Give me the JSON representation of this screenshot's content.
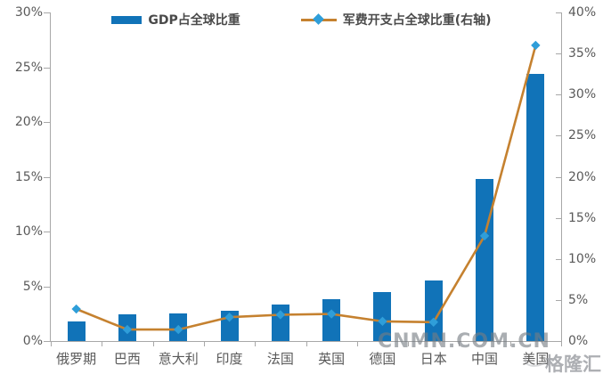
{
  "chart_data": {
    "type": "combo",
    "title": "",
    "categories": [
      "俄罗期",
      "巴西",
      "意大利",
      "印度",
      "法国",
      "英国",
      "德国",
      "日本",
      "中国",
      "美国"
    ],
    "series": [
      {
        "name": "GDP占全球比重",
        "type": "bar",
        "axis": "left",
        "color": "#1173b8",
        "values": [
          1.8,
          2.4,
          2.5,
          2.8,
          3.3,
          3.8,
          4.5,
          5.5,
          14.8,
          24.4
        ]
      },
      {
        "name": "军费开支占全球比重(右轴)",
        "type": "line",
        "axis": "right",
        "color": "#c5812f",
        "marker": "diamond",
        "marker_color": "#2f9ed9",
        "values": [
          3.9,
          1.4,
          1.4,
          2.9,
          3.2,
          3.3,
          2.4,
          2.3,
          12.8,
          36
        ]
      }
    ],
    "left_axis": {
      "min": 0,
      "max": 30,
      "step": 5,
      "unit": "%",
      "tick_labels": [
        "0%",
        "5%",
        "10%",
        "15%",
        "20%",
        "25%",
        "30%"
      ]
    },
    "right_axis": {
      "min": 0,
      "max": 40,
      "step": 5,
      "unit": "%",
      "tick_labels": [
        "0%",
        "5%",
        "10%",
        "15%",
        "20%",
        "25%",
        "30%",
        "35%",
        "40%"
      ]
    },
    "grid": false,
    "legend_position": "top"
  },
  "watermarks": {
    "center": "CNMN.COM.CN",
    "corner": "格隆汇"
  },
  "colors": {
    "bar": "#1173b8",
    "line": "#c5812f",
    "marker": "#2f9ed9",
    "axis_line": "#a8a8a8",
    "tick_text": "#595959",
    "background": "#ffffff"
  }
}
